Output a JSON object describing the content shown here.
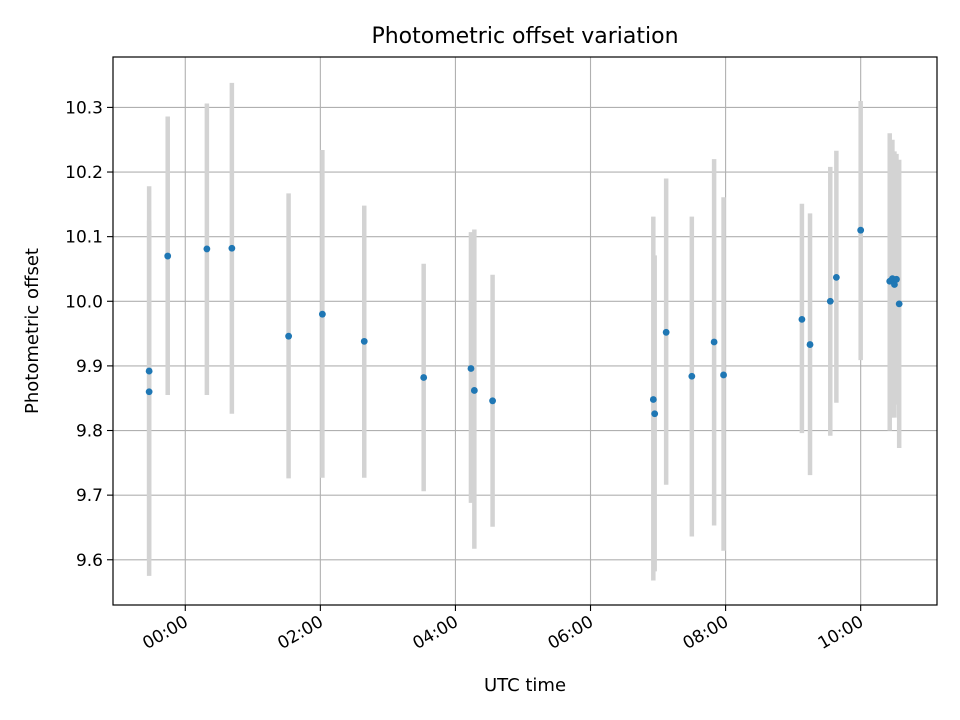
{
  "chart_data": {
    "type": "scatter",
    "title": "Photometric offset variation",
    "xlabel": "UTC time",
    "ylabel": "Photometric offset",
    "x_unit": "hours",
    "x_ticks": [
      {
        "value": 0,
        "label": "00:00"
      },
      {
        "value": 2,
        "label": "02:00"
      },
      {
        "value": 4,
        "label": "04:00"
      },
      {
        "value": 6,
        "label": "06:00"
      },
      {
        "value": 8,
        "label": "08:00"
      },
      {
        "value": 10,
        "label": "10:00"
      }
    ],
    "y_ticks": [
      {
        "value": 9.6,
        "label": "9.6"
      },
      {
        "value": 9.7,
        "label": "9.7"
      },
      {
        "value": 9.8,
        "label": "9.8"
      },
      {
        "value": 9.9,
        "label": "9.9"
      },
      {
        "value": 10.0,
        "label": "10.0"
      },
      {
        "value": 10.1,
        "label": "10.1"
      },
      {
        "value": 10.2,
        "label": "10.2"
      },
      {
        "value": 10.3,
        "label": "10.3"
      }
    ],
    "xlim": [
      -1.07,
      11.13
    ],
    "ylim": [
      9.53,
      10.378
    ],
    "grid": true,
    "colors": {
      "points": "#1f77b4",
      "errorbars": "#d3d3d3",
      "grid": "#b0b0b0"
    },
    "points": [
      {
        "x": -0.535,
        "y": 9.892,
        "ylo": 9.6,
        "yhi": 10.178
      },
      {
        "x": -0.535,
        "y": 9.86,
        "ylo": 9.575,
        "yhi": 10.125
      },
      {
        "x": -0.26,
        "y": 10.07,
        "ylo": 9.855,
        "yhi": 10.286
      },
      {
        "x": 0.32,
        "y": 10.081,
        "ylo": 9.855,
        "yhi": 10.306
      },
      {
        "x": 0.69,
        "y": 10.082,
        "ylo": 9.826,
        "yhi": 10.338
      },
      {
        "x": 1.53,
        "y": 9.946,
        "ylo": 9.726,
        "yhi": 10.167
      },
      {
        "x": 2.03,
        "y": 9.98,
        "ylo": 9.727,
        "yhi": 10.234
      },
      {
        "x": 2.65,
        "y": 9.938,
        "ylo": 9.727,
        "yhi": 10.148
      },
      {
        "x": 3.53,
        "y": 9.882,
        "ylo": 9.706,
        "yhi": 10.058
      },
      {
        "x": 4.23,
        "y": 9.896,
        "ylo": 9.688,
        "yhi": 10.107
      },
      {
        "x": 4.28,
        "y": 9.862,
        "ylo": 9.617,
        "yhi": 10.111
      },
      {
        "x": 4.55,
        "y": 9.846,
        "ylo": 9.651,
        "yhi": 10.041
      },
      {
        "x": 6.93,
        "y": 9.848,
        "ylo": 9.568,
        "yhi": 10.131
      },
      {
        "x": 6.95,
        "y": 9.826,
        "ylo": 9.582,
        "yhi": 10.071
      },
      {
        "x": 7.12,
        "y": 9.952,
        "ylo": 9.716,
        "yhi": 10.19
      },
      {
        "x": 7.5,
        "y": 9.884,
        "ylo": 9.636,
        "yhi": 10.131
      },
      {
        "x": 7.83,
        "y": 9.937,
        "ylo": 9.653,
        "yhi": 10.22
      },
      {
        "x": 7.97,
        "y": 9.886,
        "ylo": 9.614,
        "yhi": 10.161
      },
      {
        "x": 9.13,
        "y": 9.972,
        "ylo": 9.796,
        "yhi": 10.151
      },
      {
        "x": 9.25,
        "y": 9.933,
        "ylo": 9.731,
        "yhi": 10.136
      },
      {
        "x": 9.55,
        "y": 10.0,
        "ylo": 9.792,
        "yhi": 10.208
      },
      {
        "x": 9.64,
        "y": 10.037,
        "ylo": 9.843,
        "yhi": 10.233
      },
      {
        "x": 10.0,
        "y": 10.11,
        "ylo": 9.909,
        "yhi": 10.31
      },
      {
        "x": 10.43,
        "y": 10.031,
        "ylo": 9.8,
        "yhi": 10.26
      },
      {
        "x": 10.47,
        "y": 10.035,
        "ylo": 9.82,
        "yhi": 10.25
      },
      {
        "x": 10.5,
        "y": 10.026,
        "ylo": 9.82,
        "yhi": 10.232
      },
      {
        "x": 10.53,
        "y": 10.034,
        "ylo": 9.84,
        "yhi": 10.228
      },
      {
        "x": 10.57,
        "y": 9.996,
        "ylo": 9.773,
        "yhi": 10.219
      }
    ]
  }
}
